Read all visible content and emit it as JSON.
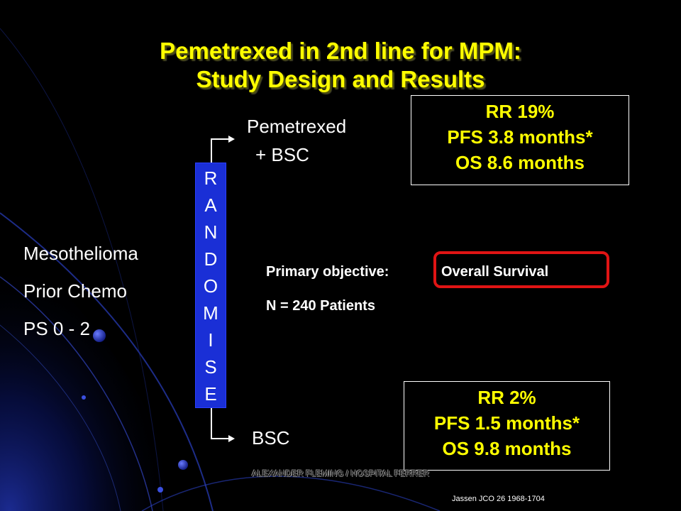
{
  "title": {
    "line1": "Pemetrexed in 2nd line for MPM:",
    "line2": "Study Design and Results"
  },
  "criteria": [
    "Mesothelioma",
    "Prior Chemo",
    "PS 0 - 2"
  ],
  "randomise_letters": [
    "R",
    "A",
    "N",
    "D",
    "O",
    "M",
    "I",
    "S",
    "E"
  ],
  "arms": {
    "top": {
      "line1": "Pemetrexed",
      "line2": "+ BSC"
    },
    "bottom": {
      "label": "BSC"
    }
  },
  "results_top": [
    "RR 19%",
    "PFS 3.8 months*",
    "OS 8.6 months"
  ],
  "results_bottom": [
    "RR 2%",
    "PFS 1.5 months*",
    "OS 9.8 months"
  ],
  "objective": {
    "label": "Primary objective:",
    "value": "Overall Survival",
    "patients": "N = 240 Patients"
  },
  "footer": "ALEXANDER FLEMING / HOSPITAL FERRER",
  "citation": "Jassen JCO 26 1968-1704",
  "colors": {
    "background": "#000000",
    "title": "#ffff00",
    "results": "#ffff00",
    "randomise_box": "#1a2fd6",
    "highlight": "#e01414"
  }
}
